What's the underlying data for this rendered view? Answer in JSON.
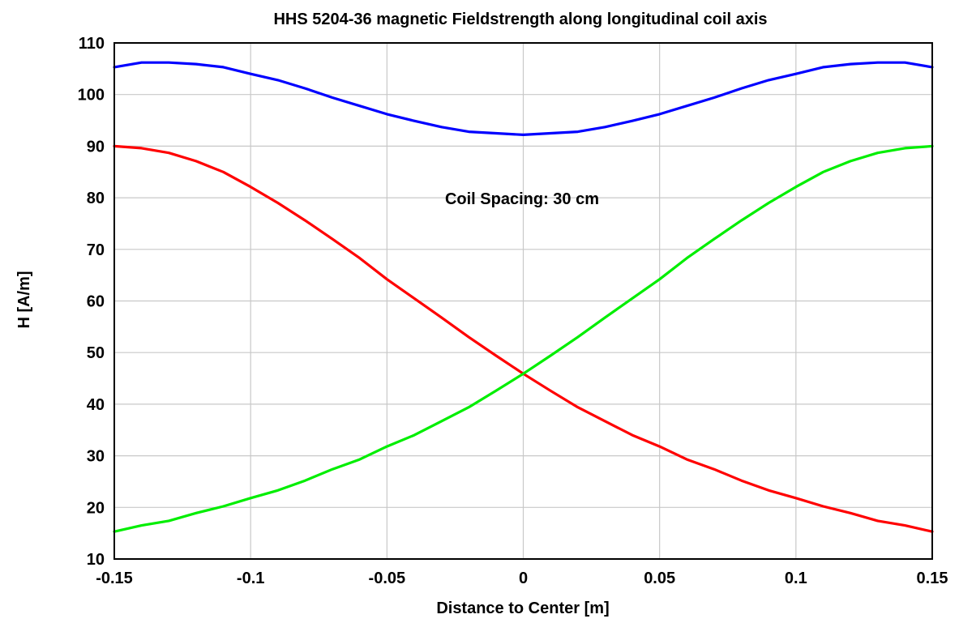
{
  "chart_data": {
    "type": "line",
    "title": "HHS 5204-36 magnetic Fieldstrength along longitudinal coil axis",
    "xlabel": "Distance to Center [m]",
    "ylabel": "H [A/m]",
    "xlim": [
      -0.15,
      0.15
    ],
    "ylim": [
      10,
      110
    ],
    "xticks": [
      -0.15,
      -0.1,
      -0.05,
      0,
      0.05,
      0.1,
      0.15
    ],
    "xtick_labels": [
      "-0.15",
      "-0.1",
      "-0.05",
      "0",
      "0.05",
      "0.1",
      "0.15"
    ],
    "yticks": [
      10,
      20,
      30,
      40,
      50,
      60,
      70,
      80,
      90,
      100,
      110
    ],
    "ytick_labels": [
      "10",
      "20",
      "30",
      "40",
      "50",
      "60",
      "70",
      "80",
      "90",
      "100",
      "110"
    ],
    "grid": true,
    "annotation": "Coil Spacing: 30 cm",
    "x": [
      -0.15,
      -0.14,
      -0.13,
      -0.12,
      -0.11,
      -0.1,
      -0.09,
      -0.08,
      -0.07,
      -0.06,
      -0.05,
      -0.04,
      -0.03,
      -0.02,
      -0.01,
      0.0,
      0.01,
      0.02,
      0.03,
      0.04,
      0.05,
      0.06,
      0.07,
      0.08,
      0.09,
      0.1,
      0.11,
      0.12,
      0.13,
      0.14,
      0.15
    ],
    "series": [
      {
        "color": "#0000ff",
        "values": [
          105.3,
          106.2,
          106.2,
          105.9,
          105.3,
          104.0,
          102.8,
          101.2,
          99.4,
          97.8,
          96.2,
          94.9,
          93.7,
          92.8,
          92.5,
          92.2,
          92.5,
          92.8,
          93.7,
          94.9,
          96.2,
          97.8,
          99.4,
          101.2,
          102.8,
          104.0,
          105.3,
          105.9,
          106.2,
          106.2,
          105.3
        ]
      },
      {
        "color": "#ff0000",
        "values": [
          90.0,
          89.6,
          88.7,
          87.1,
          85.0,
          82.1,
          79.0,
          75.6,
          72.0,
          68.3,
          64.2,
          60.5,
          56.8,
          53.0,
          49.4,
          45.9,
          42.6,
          39.4,
          36.7,
          34.0,
          31.8,
          29.3,
          27.4,
          25.2,
          23.3,
          21.8,
          20.2,
          18.9,
          17.4,
          16.5,
          15.3
        ]
      },
      {
        "color": "#00ee00",
        "values": [
          15.3,
          16.5,
          17.4,
          18.9,
          20.2,
          21.8,
          23.3,
          25.2,
          27.4,
          29.3,
          31.8,
          34.0,
          36.7,
          39.4,
          42.6,
          45.9,
          49.4,
          53.0,
          56.8,
          60.5,
          64.2,
          68.3,
          72.0,
          75.6,
          79.0,
          82.1,
          85.0,
          87.1,
          88.7,
          89.6,
          90.0
        ]
      }
    ]
  }
}
